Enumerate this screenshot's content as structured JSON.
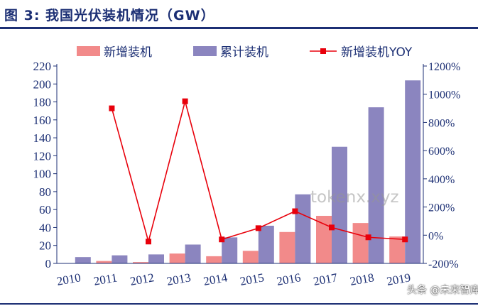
{
  "figure": {
    "title": "图 3: 我国光伏装机情况（GW）",
    "watermark": "tokenx.xyz",
    "footer": "头条 @未来智库"
  },
  "chart_data": {
    "type": "bar",
    "categories": [
      "2010",
      "2011",
      "2012",
      "2013",
      "2014",
      "2015",
      "2016",
      "2017",
      "2018",
      "2019"
    ],
    "series": [
      {
        "name": "新增装机",
        "type": "bar",
        "axis": "left",
        "color": "#f28a8a",
        "values": [
          0,
          2.7,
          1.5,
          11,
          8,
          14,
          35,
          53,
          45,
          30
        ]
      },
      {
        "name": "累计装机",
        "type": "bar",
        "axis": "left",
        "color": "#8b85bf",
        "values": [
          7,
          9,
          10,
          21,
          29,
          42,
          77,
          130,
          174,
          204
        ]
      },
      {
        "name": "新增装机YOY",
        "type": "line",
        "axis": "right",
        "color": "#e8000b",
        "values": [
          null,
          900,
          -45,
          950,
          -30,
          50,
          170,
          55,
          -15,
          -30
        ]
      }
    ],
    "y_left": {
      "min": 0,
      "max": 220,
      "step": 20,
      "ticks": [
        "0",
        "20",
        "40",
        "60",
        "80",
        "100",
        "120",
        "140",
        "160",
        "180",
        "200",
        "220"
      ]
    },
    "y_right": {
      "min": -200,
      "max": 1200,
      "step": 200,
      "ticks": [
        "-200%",
        "0%",
        "200%",
        "400%",
        "600%",
        "800%",
        "1000%",
        "1200%"
      ]
    },
    "xlabel": "",
    "ylabel": "",
    "legend": "top",
    "grid": false
  }
}
